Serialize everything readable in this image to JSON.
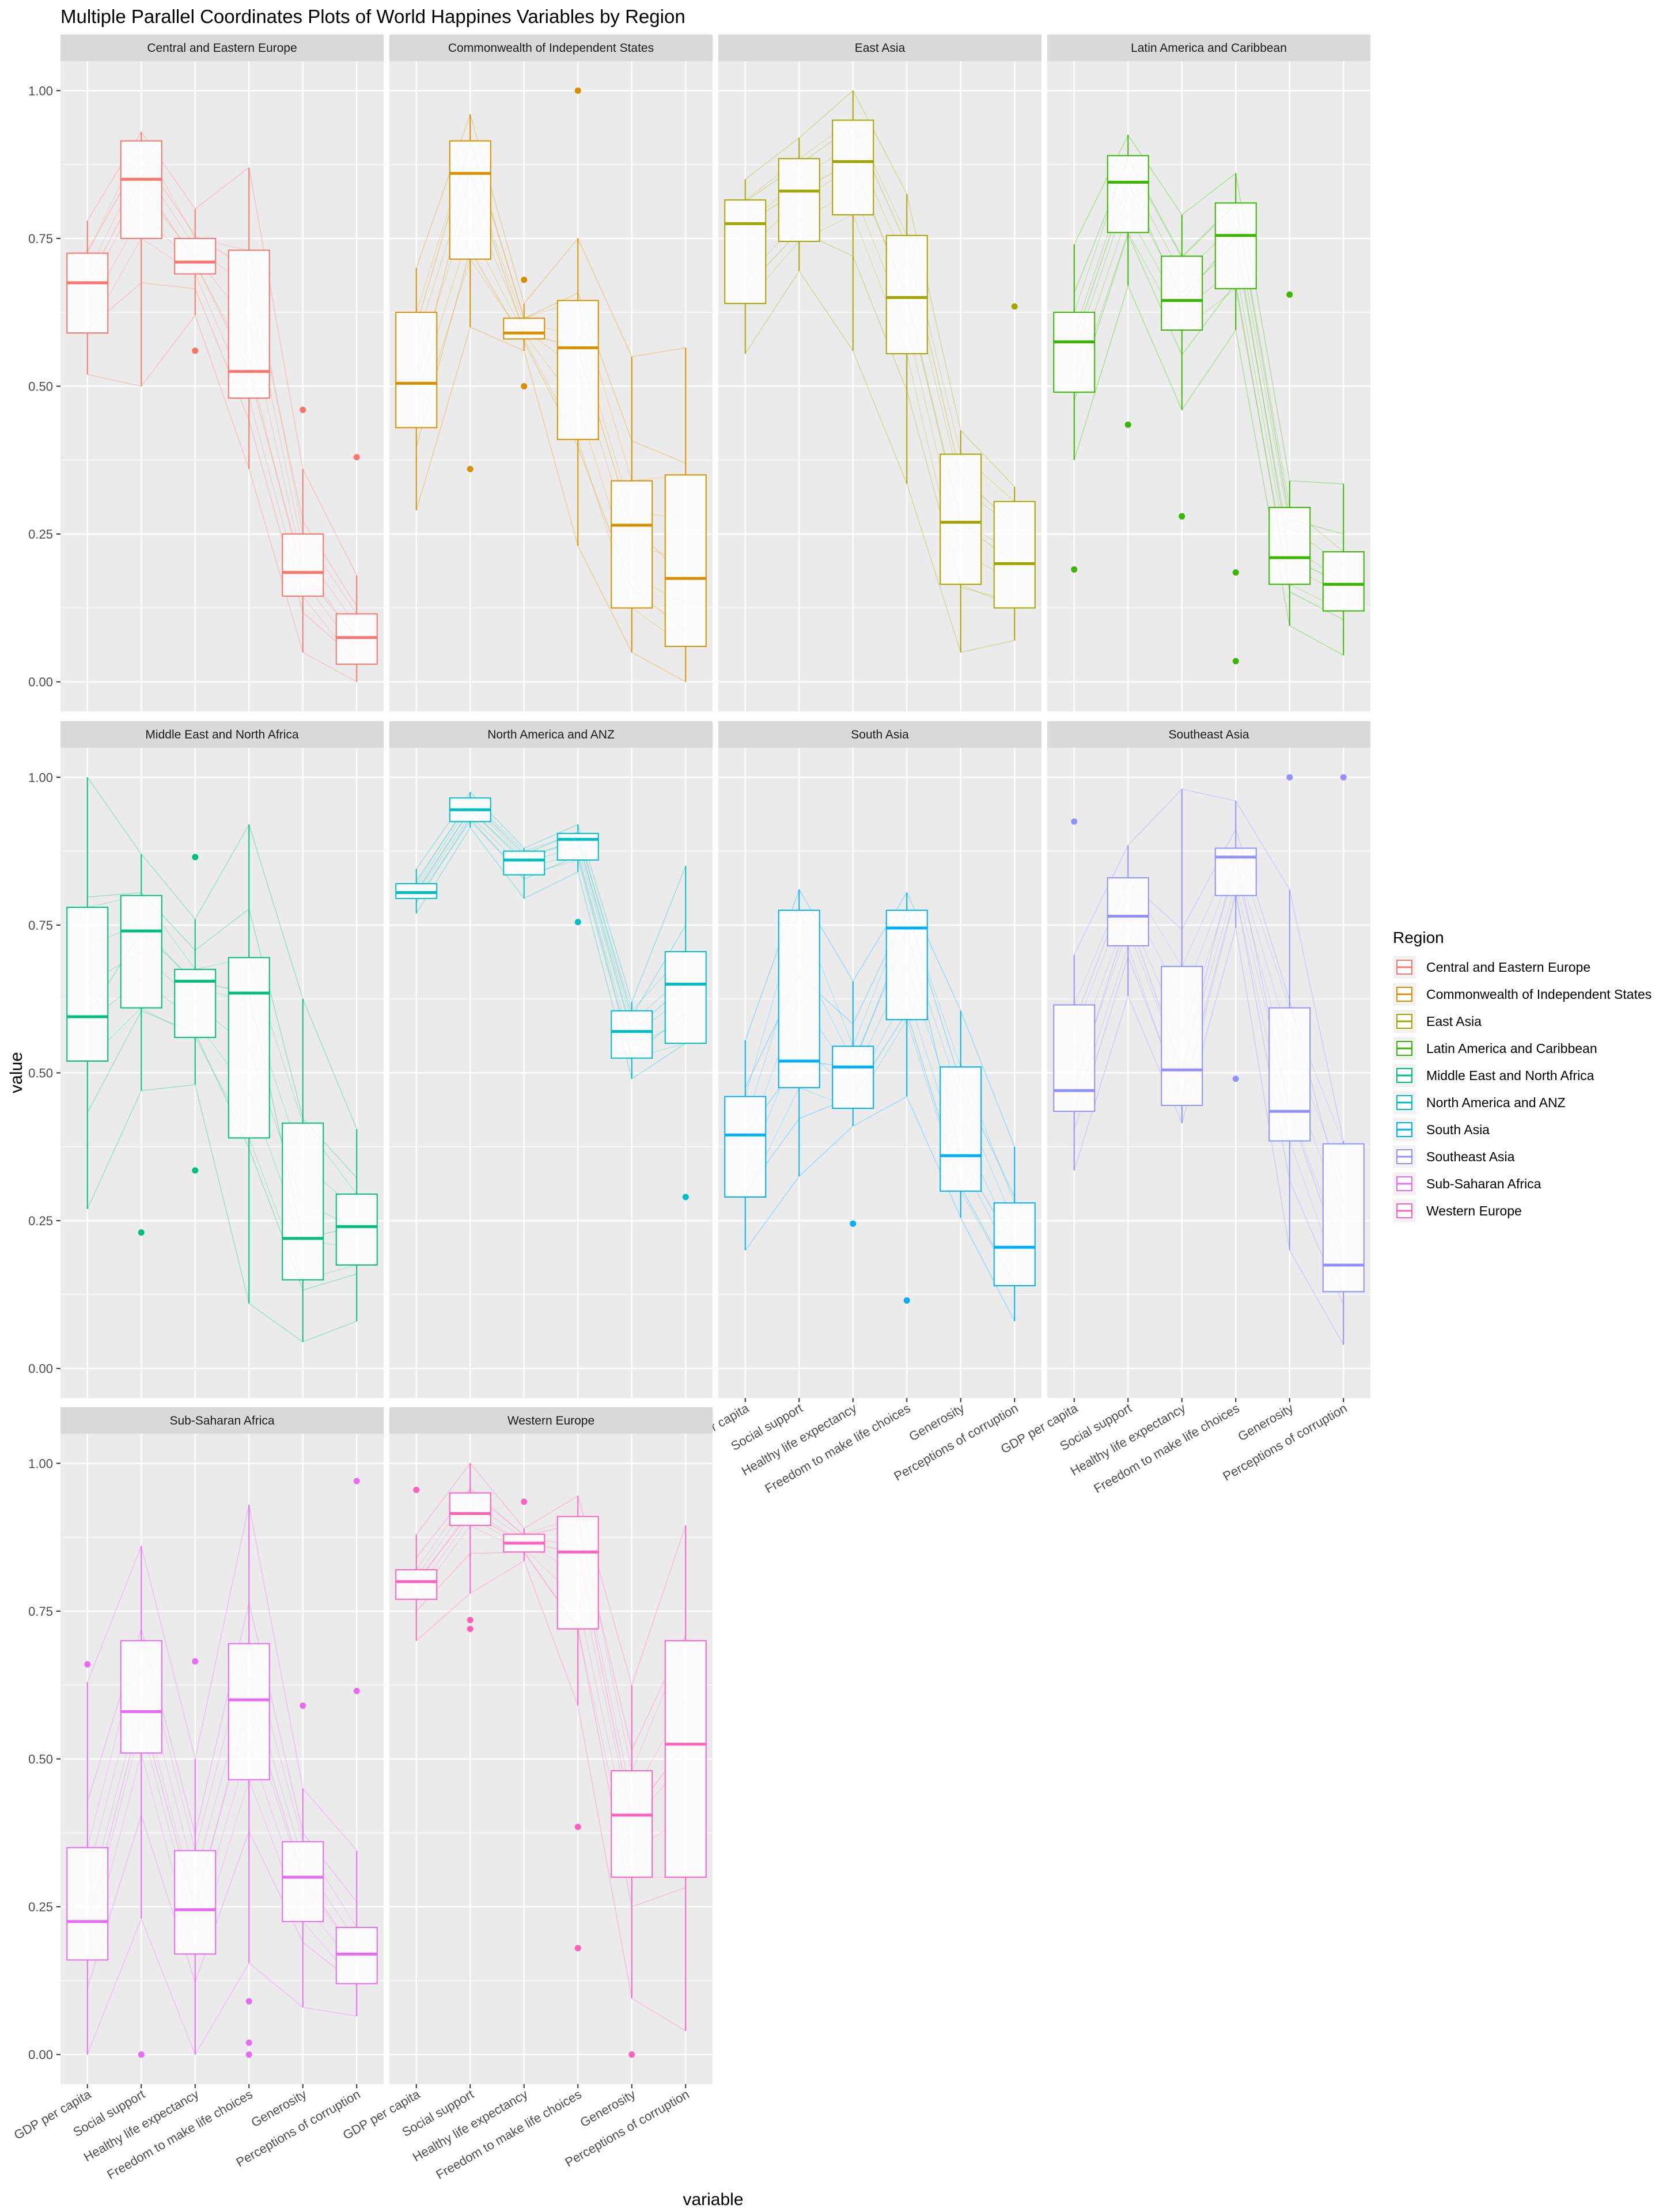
{
  "chart_data": {
    "type": "boxplot",
    "title": "Multiple Parallel Coordinates Plots of World Happines Variables by Region",
    "xlabel": "variable",
    "ylabel": "value",
    "ylim": [
      -0.05,
      1.05
    ],
    "yticks": [
      "0.00",
      "0.25",
      "0.50",
      "0.75",
      "1.00"
    ],
    "ytick_values": [
      0,
      0.25,
      0.5,
      0.75,
      1.0
    ],
    "variables": [
      "GDP per capita",
      "Social support",
      "Healthy life expectancy",
      "Freedom to make life choices",
      "Generosity",
      "Perceptions of corruption"
    ],
    "grid": true,
    "legend": {
      "title": "Region",
      "position": "right",
      "entries": [
        "Central and Eastern Europe",
        "Commonwealth of Independent States",
        "East Asia",
        "Latin America and Caribbean",
        "Middle East and North Africa",
        "North America and ANZ",
        "South Asia",
        "Southeast Asia",
        "Sub-Saharan Africa",
        "Western Europe"
      ]
    },
    "panels": [
      {
        "name": "Central and Eastern Europe",
        "color": "#F8766D",
        "boxes": [
          {
            "min": 0.52,
            "q1": 0.59,
            "median": 0.675,
            "q3": 0.725,
            "max": 0.78,
            "outliers": []
          },
          {
            "min": 0.5,
            "q1": 0.75,
            "median": 0.85,
            "q3": 0.915,
            "max": 0.93,
            "outliers": []
          },
          {
            "min": 0.62,
            "q1": 0.69,
            "median": 0.71,
            "q3": 0.75,
            "max": 0.8,
            "outliers": [
              0.56
            ]
          },
          {
            "min": 0.36,
            "q1": 0.48,
            "median": 0.525,
            "q3": 0.73,
            "max": 0.87,
            "outliers": []
          },
          {
            "min": 0.05,
            "q1": 0.145,
            "median": 0.185,
            "q3": 0.25,
            "max": 0.36,
            "outliers": [
              0.46
            ]
          },
          {
            "min": 0.0,
            "q1": 0.03,
            "median": 0.075,
            "q3": 0.115,
            "max": 0.18,
            "outliers": [
              0.38
            ]
          }
        ]
      },
      {
        "name": "Commonwealth of Independent States",
        "color": "#D89000",
        "boxes": [
          {
            "min": 0.29,
            "q1": 0.43,
            "median": 0.505,
            "q3": 0.625,
            "max": 0.7,
            "outliers": []
          },
          {
            "min": 0.6,
            "q1": 0.715,
            "median": 0.86,
            "q3": 0.915,
            "max": 0.96,
            "outliers": [
              0.36
            ]
          },
          {
            "min": 0.56,
            "q1": 0.58,
            "median": 0.59,
            "q3": 0.615,
            "max": 0.64,
            "outliers": [
              0.68,
              0.5
            ]
          },
          {
            "min": 0.23,
            "q1": 0.41,
            "median": 0.565,
            "q3": 0.645,
            "max": 0.75,
            "outliers": [
              1.0
            ]
          },
          {
            "min": 0.05,
            "q1": 0.125,
            "median": 0.265,
            "q3": 0.34,
            "max": 0.55,
            "outliers": []
          },
          {
            "min": 0.0,
            "q1": 0.06,
            "median": 0.175,
            "q3": 0.35,
            "max": 0.565,
            "outliers": []
          }
        ]
      },
      {
        "name": "East Asia",
        "color": "#A3A500",
        "boxes": [
          {
            "min": 0.555,
            "q1": 0.64,
            "median": 0.775,
            "q3": 0.815,
            "max": 0.85,
            "outliers": []
          },
          {
            "min": 0.695,
            "q1": 0.745,
            "median": 0.83,
            "q3": 0.885,
            "max": 0.92,
            "outliers": []
          },
          {
            "min": 0.56,
            "q1": 0.79,
            "median": 0.88,
            "q3": 0.95,
            "max": 1.0,
            "outliers": []
          },
          {
            "min": 0.335,
            "q1": 0.555,
            "median": 0.65,
            "q3": 0.755,
            "max": 0.825,
            "outliers": []
          },
          {
            "min": 0.05,
            "q1": 0.165,
            "median": 0.27,
            "q3": 0.385,
            "max": 0.425,
            "outliers": []
          },
          {
            "min": 0.07,
            "q1": 0.125,
            "median": 0.2,
            "q3": 0.305,
            "max": 0.33,
            "outliers": [
              0.635
            ]
          }
        ]
      },
      {
        "name": "Latin America and Caribbean",
        "color": "#39B600",
        "boxes": [
          {
            "min": 0.375,
            "q1": 0.49,
            "median": 0.575,
            "q3": 0.625,
            "max": 0.74,
            "outliers": [
              0.19
            ]
          },
          {
            "min": 0.67,
            "q1": 0.76,
            "median": 0.845,
            "q3": 0.89,
            "max": 0.925,
            "outliers": [
              0.435
            ]
          },
          {
            "min": 0.46,
            "q1": 0.595,
            "median": 0.645,
            "q3": 0.72,
            "max": 0.79,
            "outliers": [
              0.28
            ]
          },
          {
            "min": 0.595,
            "q1": 0.665,
            "median": 0.755,
            "q3": 0.81,
            "max": 0.86,
            "outliers": [
              0.185,
              0.035
            ]
          },
          {
            "min": 0.095,
            "q1": 0.165,
            "median": 0.21,
            "q3": 0.295,
            "max": 0.34,
            "outliers": [
              0.655
            ]
          },
          {
            "min": 0.045,
            "q1": 0.12,
            "median": 0.165,
            "q3": 0.22,
            "max": 0.335,
            "outliers": []
          }
        ]
      },
      {
        "name": "Middle East and North Africa",
        "color": "#00BF7D",
        "boxes": [
          {
            "min": 0.27,
            "q1": 0.52,
            "median": 0.595,
            "q3": 0.78,
            "max": 1.0,
            "outliers": []
          },
          {
            "min": 0.47,
            "q1": 0.61,
            "median": 0.74,
            "q3": 0.8,
            "max": 0.87,
            "outliers": [
              0.23
            ]
          },
          {
            "min": 0.48,
            "q1": 0.56,
            "median": 0.655,
            "q3": 0.675,
            "max": 0.76,
            "outliers": [
              0.865,
              0.335
            ]
          },
          {
            "min": 0.11,
            "q1": 0.39,
            "median": 0.635,
            "q3": 0.695,
            "max": 0.92,
            "outliers": []
          },
          {
            "min": 0.045,
            "q1": 0.15,
            "median": 0.22,
            "q3": 0.415,
            "max": 0.625,
            "outliers": []
          },
          {
            "min": 0.08,
            "q1": 0.175,
            "median": 0.24,
            "q3": 0.295,
            "max": 0.405,
            "outliers": []
          }
        ]
      },
      {
        "name": "North America and ANZ",
        "color": "#00BFC4",
        "boxes": [
          {
            "min": 0.77,
            "q1": 0.795,
            "median": 0.805,
            "q3": 0.82,
            "max": 0.845,
            "outliers": []
          },
          {
            "min": 0.915,
            "q1": 0.925,
            "median": 0.945,
            "q3": 0.965,
            "max": 0.975,
            "outliers": []
          },
          {
            "min": 0.795,
            "q1": 0.835,
            "median": 0.86,
            "q3": 0.875,
            "max": 0.88,
            "outliers": []
          },
          {
            "min": 0.84,
            "q1": 0.86,
            "median": 0.895,
            "q3": 0.905,
            "max": 0.92,
            "outliers": [
              0.755
            ]
          },
          {
            "min": 0.49,
            "q1": 0.525,
            "median": 0.57,
            "q3": 0.605,
            "max": 0.62,
            "outliers": []
          },
          {
            "min": 0.55,
            "q1": 0.55,
            "median": 0.65,
            "q3": 0.705,
            "max": 0.85,
            "outliers": [
              0.29
            ]
          }
        ]
      },
      {
        "name": "South Asia",
        "color": "#00B0F6",
        "boxes": [
          {
            "min": 0.2,
            "q1": 0.29,
            "median": 0.395,
            "q3": 0.46,
            "max": 0.555,
            "outliers": []
          },
          {
            "min": 0.325,
            "q1": 0.475,
            "median": 0.52,
            "q3": 0.775,
            "max": 0.81,
            "outliers": []
          },
          {
            "min": 0.41,
            "q1": 0.44,
            "median": 0.51,
            "q3": 0.545,
            "max": 0.655,
            "outliers": [
              0.245
            ]
          },
          {
            "min": 0.46,
            "q1": 0.59,
            "median": 0.745,
            "q3": 0.775,
            "max": 0.805,
            "outliers": [
              0.115
            ]
          },
          {
            "min": 0.255,
            "q1": 0.3,
            "median": 0.36,
            "q3": 0.51,
            "max": 0.605,
            "outliers": []
          },
          {
            "min": 0.08,
            "q1": 0.14,
            "median": 0.205,
            "q3": 0.28,
            "max": 0.375,
            "outliers": []
          }
        ]
      },
      {
        "name": "Southeast Asia",
        "color": "#9590FF",
        "boxes": [
          {
            "min": 0.335,
            "q1": 0.435,
            "median": 0.47,
            "q3": 0.615,
            "max": 0.7,
            "outliers": [
              0.925
            ]
          },
          {
            "min": 0.63,
            "q1": 0.715,
            "median": 0.765,
            "q3": 0.83,
            "max": 0.885,
            "outliers": []
          },
          {
            "min": 0.415,
            "q1": 0.445,
            "median": 0.505,
            "q3": 0.68,
            "max": 0.98,
            "outliers": []
          },
          {
            "min": 0.745,
            "q1": 0.8,
            "median": 0.865,
            "q3": 0.88,
            "max": 0.96,
            "outliers": [
              0.49
            ]
          },
          {
            "min": 0.2,
            "q1": 0.385,
            "median": 0.435,
            "q3": 0.61,
            "max": 0.81,
            "outliers": [
              1.0
            ]
          },
          {
            "min": 0.04,
            "q1": 0.13,
            "median": 0.175,
            "q3": 0.38,
            "max": 0.385,
            "outliers": [
              1.0
            ]
          }
        ]
      },
      {
        "name": "Sub-Saharan Africa",
        "color": "#E76BF3",
        "boxes": [
          {
            "min": 0.0,
            "q1": 0.16,
            "median": 0.225,
            "q3": 0.35,
            "max": 0.63,
            "outliers": [
              0.66
            ]
          },
          {
            "min": 0.23,
            "q1": 0.51,
            "median": 0.58,
            "q3": 0.7,
            "max": 0.86,
            "outliers": [
              0.0
            ]
          },
          {
            "min": 0.0,
            "q1": 0.17,
            "median": 0.245,
            "q3": 0.345,
            "max": 0.5,
            "outliers": [
              0.665
            ]
          },
          {
            "min": 0.155,
            "q1": 0.465,
            "median": 0.6,
            "q3": 0.695,
            "max": 0.93,
            "outliers": [
              0.09,
              0.02,
              0.0
            ]
          },
          {
            "min": 0.08,
            "q1": 0.225,
            "median": 0.3,
            "q3": 0.36,
            "max": 0.45,
            "outliers": [
              0.59
            ]
          },
          {
            "min": 0.065,
            "q1": 0.12,
            "median": 0.17,
            "q3": 0.215,
            "max": 0.345,
            "outliers": [
              0.97,
              0.615
            ]
          }
        ]
      },
      {
        "name": "Western Europe",
        "color": "#FF62BC",
        "boxes": [
          {
            "min": 0.7,
            "q1": 0.77,
            "median": 0.8,
            "q3": 0.82,
            "max": 0.88,
            "outliers": [
              0.955
            ]
          },
          {
            "min": 0.78,
            "q1": 0.895,
            "median": 0.915,
            "q3": 0.95,
            "max": 1.0,
            "outliers": [
              0.735,
              0.72
            ]
          },
          {
            "min": 0.835,
            "q1": 0.85,
            "median": 0.865,
            "q3": 0.88,
            "max": 0.89,
            "outliers": [
              0.935
            ]
          },
          {
            "min": 0.59,
            "q1": 0.72,
            "median": 0.85,
            "q3": 0.91,
            "max": 0.945,
            "outliers": [
              0.385,
              0.18
            ]
          },
          {
            "min": 0.095,
            "q1": 0.3,
            "median": 0.405,
            "q3": 0.48,
            "max": 0.625,
            "outliers": [
              0.0
            ]
          },
          {
            "min": 0.04,
            "q1": 0.3,
            "median": 0.525,
            "q3": 0.7,
            "max": 0.895,
            "outliers": []
          }
        ]
      }
    ]
  }
}
